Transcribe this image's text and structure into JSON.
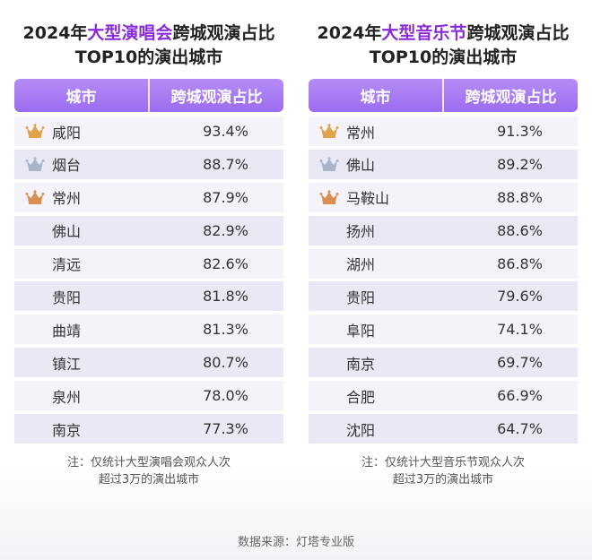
{
  "left": {
    "title_part1": "2024年",
    "title_highlight": "大型演唱会",
    "title_part2": "跨城观演占比",
    "title_line2": "TOP10的演出城市",
    "header_city": "城市",
    "header_value": "跨城观演占比",
    "note_line1": "注：仅统计大型演唱会观众人次",
    "note_line2": "超过3万的演出城市"
  },
  "right": {
    "title_part1": "2024年",
    "title_highlight": "大型音乐节",
    "title_part2": "跨城观演占比",
    "title_line2": "TOP10的演出城市",
    "header_city": "城市",
    "header_value": "跨城观演占比",
    "note_line1": "注：仅统计大型音乐节观众人次",
    "note_line2": "超过3万的演出城市"
  },
  "source": "数据来源：灯塔专业版",
  "colors": {
    "header_purple": "#9b6cf0",
    "title_highlight": "#8a2bd8",
    "gold_crown": "#e0a24a",
    "silver_crown": "#aab4c8",
    "bronze_crown": "#d98f52"
  },
  "chart_data": [
    {
      "type": "table",
      "title": "2024年大型演唱会跨城观演占比TOP10的演出城市",
      "columns": [
        "城市",
        "跨城观演占比"
      ],
      "rows": [
        {
          "city": "咸阳",
          "value": "93.4%",
          "crown": "gold"
        },
        {
          "city": "烟台",
          "value": "88.7%",
          "crown": "silver"
        },
        {
          "city": "常州",
          "value": "87.9%",
          "crown": "bronze"
        },
        {
          "city": "佛山",
          "value": "82.9%",
          "crown": ""
        },
        {
          "city": "清远",
          "value": "82.6%",
          "crown": ""
        },
        {
          "city": "贵阳",
          "value": "81.8%",
          "crown": ""
        },
        {
          "city": "曲靖",
          "value": "81.3%",
          "crown": ""
        },
        {
          "city": "镇江",
          "value": "80.7%",
          "crown": ""
        },
        {
          "city": "泉州",
          "value": "78.0%",
          "crown": ""
        },
        {
          "city": "南京",
          "value": "77.3%",
          "crown": ""
        }
      ]
    },
    {
      "type": "table",
      "title": "2024年大型音乐节跨城观演占比TOP10的演出城市",
      "columns": [
        "城市",
        "跨城观演占比"
      ],
      "rows": [
        {
          "city": "常州",
          "value": "91.3%",
          "crown": "gold"
        },
        {
          "city": "佛山",
          "value": "89.2%",
          "crown": "silver"
        },
        {
          "city": "马鞍山",
          "value": "88.8%",
          "crown": "bronze"
        },
        {
          "city": "扬州",
          "value": "88.6%",
          "crown": ""
        },
        {
          "city": "湖州",
          "value": "86.8%",
          "crown": ""
        },
        {
          "city": "贵阳",
          "value": "79.6%",
          "crown": ""
        },
        {
          "city": "阜阳",
          "value": "74.1%",
          "crown": ""
        },
        {
          "city": "南京",
          "value": "69.7%",
          "crown": ""
        },
        {
          "city": "合肥",
          "value": "66.9%",
          "crown": ""
        },
        {
          "city": "沈阳",
          "value": "64.7%",
          "crown": ""
        }
      ]
    }
  ]
}
